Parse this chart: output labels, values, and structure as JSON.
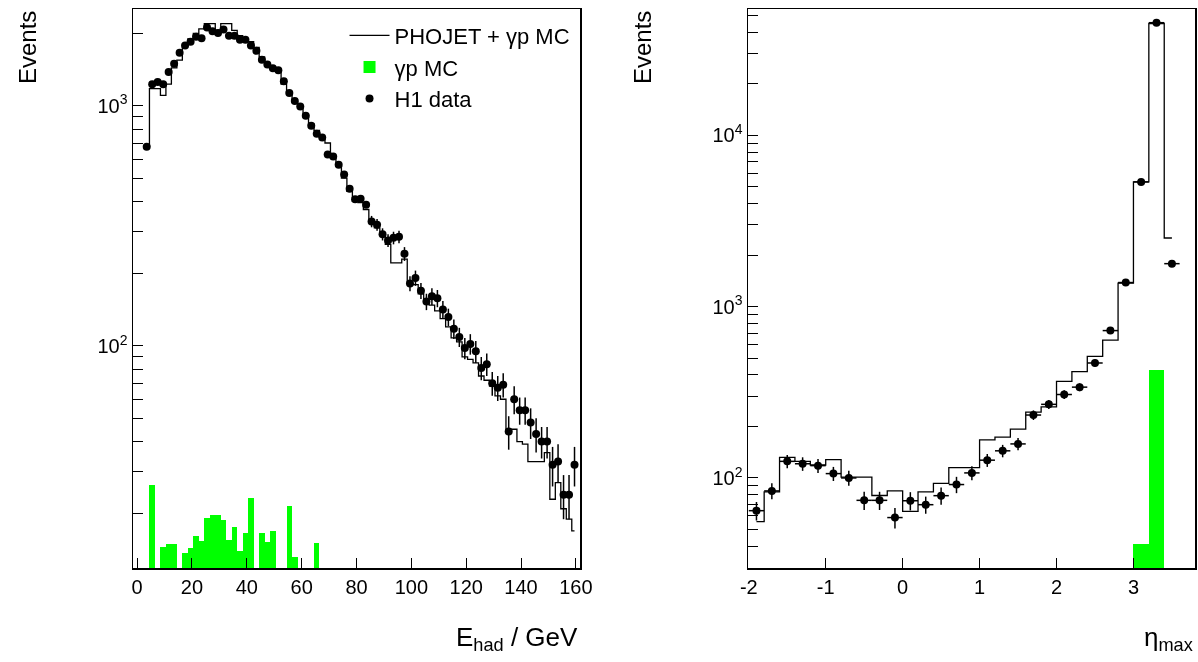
{
  "chart_data": [
    {
      "type": "step",
      "xlabel": "E$_{had}$ / GeV",
      "ylabel": "Events",
      "log": true,
      "legend": "top right",
      "xlim": [
        -1.5,
        161.5
      ],
      "ylim": [
        11.9,
        2530
      ],
      "xticks": [
        0,
        20,
        40,
        60,
        80,
        100,
        120,
        140,
        160
      ],
      "yticks": [
        {
          "value": 20,
          "label": null
        },
        {
          "value": 30,
          "label": null
        },
        {
          "value": 40,
          "label": null
        },
        {
          "value": 50,
          "label": null
        },
        {
          "value": 60,
          "label": null
        },
        {
          "value": 70,
          "label": null
        },
        {
          "value": 80,
          "label": null
        },
        {
          "value": 90,
          "label": null
        },
        {
          "value": 100,
          "label": "10$^{2}$"
        },
        {
          "value": 200,
          "label": null
        },
        {
          "value": 300,
          "label": null
        },
        {
          "value": 400,
          "label": null
        },
        {
          "value": 500,
          "label": null
        },
        {
          "value": 600,
          "label": null
        },
        {
          "value": 700,
          "label": null
        },
        {
          "value": 800,
          "label": null
        },
        {
          "value": 900,
          "label": null
        },
        {
          "value": 1000,
          "label": "10$^{3}$"
        },
        {
          "value": 2000,
          "label": null
        }
      ],
      "x": [
        3.5,
        5.5,
        7.5,
        9.5,
        11.5,
        13.5,
        15.5,
        17.5,
        19.5,
        21.5,
        23.5,
        25.5,
        27.5,
        29.5,
        31.5,
        33.5,
        35.5,
        37.5,
        39.5,
        41.5,
        43.5,
        45.5,
        47.5,
        49.5,
        51.5,
        53.5,
        55.5,
        57.5,
        59.5,
        61.5,
        63.5,
        65.5,
        67.5,
        69.5,
        71.5,
        73.5,
        75.5,
        77.5,
        79.5,
        81.5,
        83.5,
        85.5,
        87.5,
        89.5,
        91.5,
        93.5,
        95.5,
        97.5,
        99.5,
        101.5,
        103.5,
        105.5,
        107.5,
        109.5,
        111.5,
        113.5,
        115.5,
        117.5,
        119.5,
        121.5,
        123.5,
        125.5,
        127.5,
        129.5,
        131.5,
        133.5,
        135.5,
        137.5,
        139.5,
        141.5,
        143.5,
        145.5,
        147.5,
        149.5,
        151.5,
        153.5,
        155.5,
        157.5,
        159.5
      ],
      "series": [
        {
          "name": "PHOJET + γp MC",
          "color": "#000000",
          "values": [
            675,
            1180,
            1180,
            1106,
            1230,
            1440,
            1550,
            1800,
            1900,
            2000,
            2090,
            2200,
            2200,
            2060,
            2200,
            2200,
            2060,
            1960,
            1900,
            1850,
            1750,
            1600,
            1480,
            1430,
            1400,
            1230,
            1130,
            1040,
            990,
            909,
            840,
            790,
            740,
            700,
            620,
            560,
            500,
            440,
            400,
            395,
            370,
            330,
            310,
            290,
            265,
            222,
            222,
            230,
            182,
            180,
            165,
            155,
            148,
            140,
            130,
            120,
            108,
            104,
            90,
            88,
            85,
            75,
            72,
            68,
            62,
            60,
            45,
            45,
            40,
            39,
            33,
            33,
            33,
            36,
            23,
            27,
            21,
            19,
            17
          ]
        },
        {
          "type": "bar",
          "name": "γp MC",
          "color": "#00ff00",
          "x": [
            5.5,
            7.5,
            9.5,
            11.5,
            13.5,
            15.5,
            17.5,
            19.5,
            21.5,
            23.5,
            25.5,
            27.5,
            29.5,
            31.5,
            33.5,
            35.5,
            37.5,
            39.5,
            41.5,
            43.5,
            45.5,
            47.5,
            49.5,
            51.5,
            53.5,
            55.5,
            57.5,
            59.5,
            61.5,
            63.5,
            65.5
          ],
          "values": [
            26.5,
            null,
            14.5,
            15,
            15,
            null,
            13.8,
            14.4,
            16.2,
            15.4,
            19.2,
            19.8,
            19.7,
            18.9,
            15.5,
            17.7,
            14,
            16.6,
            23.2,
            null,
            16.7,
            15.2,
            16.9,
            null,
            null,
            21.6,
            13.2,
            null,
            null,
            null,
            15.1
          ]
        },
        {
          "type": "scatter",
          "name": "H1 data",
          "color": "#000000",
          "marker": "circle",
          "values": [
            675,
            1230,
            1255,
            1230,
            1383,
            1497,
            1663,
            1785,
            1849,
            1938,
            1911,
            2120,
            2043,
            2010,
            2080,
            1958,
            1958,
            1884,
            1884,
            1785,
            1694,
            1556,
            1486,
            1432,
            1407,
            1265,
            1130,
            1048,
            993,
            909,
            827,
            765,
            738,
            627,
            615,
            569,
            517,
            452,
            408,
            410,
            387,
            330,
            320,
            292,
            275,
            282,
            285,
            242,
            182,
            192,
            170,
            153,
            161,
            158,
            142,
            132,
            118,
            109,
            98,
            102,
            95,
            81,
            84,
            70,
            67,
            69,
            44,
            60,
            54,
            54,
            48,
            43,
            40,
            40,
            32,
            33,
            24,
            24,
            32
          ],
          "errors": [
            null,
            null,
            null,
            null,
            null,
            null,
            null,
            null,
            null,
            null,
            null,
            null,
            null,
            null,
            null,
            null,
            null,
            null,
            null,
            null,
            null,
            null,
            null,
            null,
            null,
            null,
            null,
            null,
            null,
            null,
            null,
            null,
            null,
            null,
            null,
            null,
            null,
            null,
            null,
            null,
            null,
            18,
            18,
            17,
            17,
            17,
            17,
            16,
            13,
            14,
            13,
            12,
            13,
            13,
            12,
            11,
            11,
            10,
            10,
            10,
            10,
            9,
            9,
            8,
            8,
            8,
            7,
            8,
            7,
            7,
            7,
            7,
            6,
            6,
            6,
            6,
            5,
            5,
            6
          ]
        }
      ]
    },
    {
      "type": "step",
      "xlabel": "η$_{max}$",
      "ylabel": "Events",
      "log": true,
      "legend": false,
      "xlim": [
        -2.01,
        3.8
      ],
      "ylim": [
        29.8,
        54700
      ],
      "xticks": [
        -2,
        -1,
        0,
        1,
        2,
        3
      ],
      "yticks": [
        {
          "value": 40,
          "label": null
        },
        {
          "value": 50,
          "label": null
        },
        {
          "value": 60,
          "label": null
        },
        {
          "value": 70,
          "label": null
        },
        {
          "value": 80,
          "label": null
        },
        {
          "value": 90,
          "label": null
        },
        {
          "value": 100,
          "label": "10$^{2}$"
        },
        {
          "value": 200,
          "label": null
        },
        {
          "value": 300,
          "label": null
        },
        {
          "value": 400,
          "label": null
        },
        {
          "value": 500,
          "label": null
        },
        {
          "value": 600,
          "label": null
        },
        {
          "value": 700,
          "label": null
        },
        {
          "value": 800,
          "label": null
        },
        {
          "value": 900,
          "label": null
        },
        {
          "value": 1000,
          "label": "10$^{3}$"
        },
        {
          "value": 2000,
          "label": null
        },
        {
          "value": 3000,
          "label": null
        },
        {
          "value": 4000,
          "label": null
        },
        {
          "value": 5000,
          "label": null
        },
        {
          "value": 6000,
          "label": null
        },
        {
          "value": 7000,
          "label": null
        },
        {
          "value": 8000,
          "label": null
        },
        {
          "value": 9000,
          "label": null
        },
        {
          "value": 10000,
          "label": "10$^{4}$"
        },
        {
          "value": 20000,
          "label": null
        },
        {
          "value": 30000,
          "label": null
        },
        {
          "value": 40000,
          "label": null
        },
        {
          "value": 50000,
          "label": null
        }
      ],
      "x": [
        -1.9,
        -1.7,
        -1.5,
        -1.3,
        -1.1,
        -0.9,
        -0.7,
        -0.5,
        -0.3,
        -0.1,
        0.1,
        0.3,
        0.5,
        0.7,
        0.9,
        1.1,
        1.3,
        1.5,
        1.7,
        1.9,
        2.1,
        2.3,
        2.5,
        2.7,
        2.9,
        3.1,
        3.3,
        3.5
      ],
      "series": [
        {
          "color": "#000000",
          "values": [
            55.6,
            83,
            132,
            125,
            119,
            128,
            101,
            101,
            79,
            84,
            63.8,
            83,
            92.9,
            115,
            115,
            167,
            173,
            193,
            242,
            260,
            366,
            418,
            513,
            638,
            1371,
            5350,
            45000,
            2518
          ]
        },
        {
          "type": "bar",
          "color": "#00ff00",
          "x": [
            3.1,
            3.3
          ],
          "values": [
            41.2,
            429
          ]
        },
        {
          "type": "scatter",
          "color": "#000000",
          "marker": "circle",
          "values": [
            64.4,
            84,
            125,
            121,
            118,
            106,
            100,
            74,
            74,
            58.7,
            73.6,
            69.8,
            78.8,
            91.5,
            107,
            127,
            144,
            158,
            233,
            269,
            307,
            339,
            469,
            725,
            1383,
            5350,
            45500,
            1783
          ],
          "errors": [
            8,
            9,
            11,
            11,
            11,
            10,
            10,
            9,
            9,
            8,
            9,
            8,
            9,
            10,
            10,
            11,
            12,
            13,
            15,
            16,
            18,
            18,
            22,
            27,
            37,
            73,
            213,
            42
          ],
          "xerrors": [
            0.1,
            0.1,
            0.1,
            0.1,
            0.1,
            0.1,
            0.1,
            0.1,
            0.1,
            0.1,
            0.1,
            0.1,
            0.1,
            0.1,
            0.1,
            0.1,
            0.1,
            0.1,
            0.1,
            0.1,
            0.1,
            0.1,
            0.1,
            0.1,
            0.1,
            0.1,
            0.1,
            0.1
          ]
        }
      ]
    }
  ]
}
